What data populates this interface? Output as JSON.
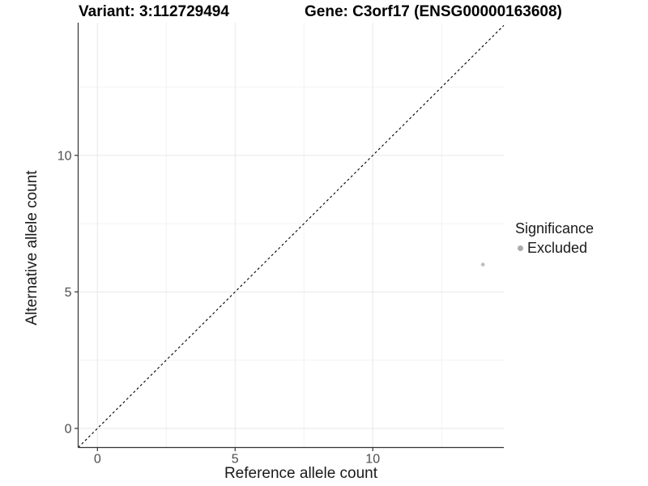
{
  "titles": {
    "left": "Variant: 3:112729494",
    "right": "Gene: C3orf17 (ENSG00000163608)"
  },
  "axes": {
    "x_label": "Reference allele count",
    "y_label": "Alternative allele count"
  },
  "legend": {
    "title": "Significance",
    "items": [
      {
        "label": "Excluded",
        "color": "#ababab"
      }
    ]
  },
  "chart_data": {
    "type": "scatter",
    "title_left": "Variant: 3:112729494",
    "title_right": "Gene: C3orf17 (ENSG00000163608)",
    "xlabel": "Reference allele count",
    "ylabel": "Alternative allele count",
    "xlim": [
      -0.7,
      14.76
    ],
    "ylim": [
      -0.7,
      14.86
    ],
    "x_ticks": [
      0,
      5,
      10
    ],
    "y_ticks": [
      0,
      5,
      10
    ],
    "x_minor_ticks": [
      2.5,
      7.5,
      12.5
    ],
    "y_minor_ticks": [
      2.5,
      7.5,
      12.5
    ],
    "grid": "major and minor, light gray, on white panel",
    "legend_position": "right",
    "series": [
      {
        "name": "Excluded",
        "color": "#c0c0c0",
        "points": [
          {
            "x": 14,
            "y": 6
          }
        ]
      }
    ],
    "reference_line": {
      "type": "identity y=x",
      "style": "dashed",
      "color": "#000000"
    },
    "colors": {
      "grid_major": "#e7e7e7",
      "grid_minor": "#f3f3f3",
      "axis_line": "#333333",
      "tick_label": "#4d4d4d",
      "point": "#c0c0c0",
      "legend_key": "#ababab"
    }
  }
}
